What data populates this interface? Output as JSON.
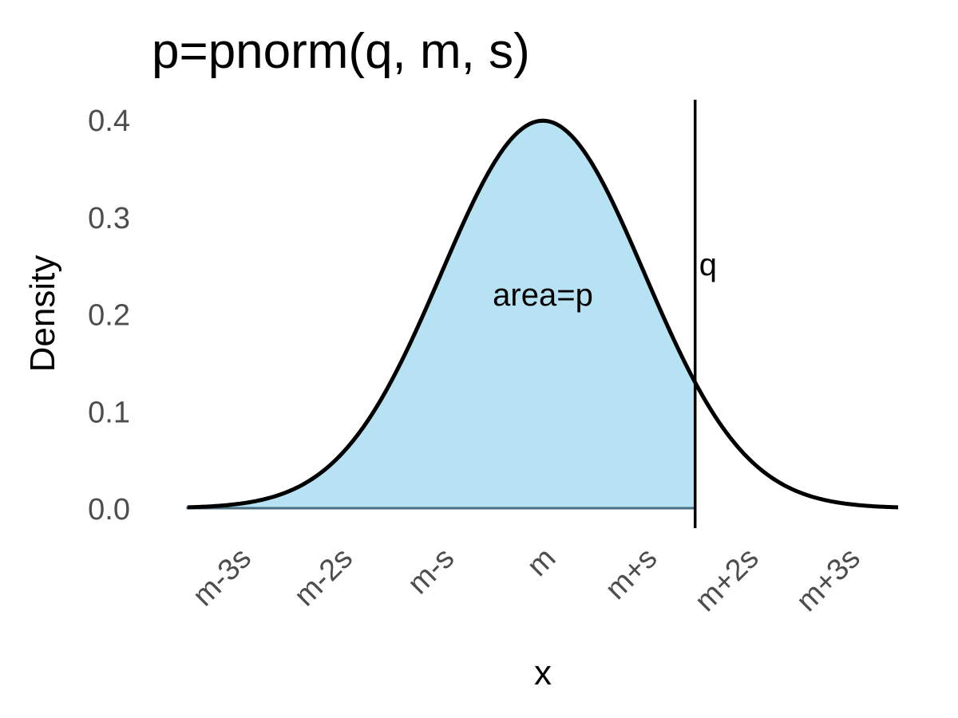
{
  "chart_data": {
    "type": "area",
    "title": "p=pnorm(q, m, s)",
    "xlabel": "x",
    "ylabel": "Density",
    "x_ticks": [
      {
        "value": -3,
        "label": "m-3s"
      },
      {
        "value": -2,
        "label": "m-2s"
      },
      {
        "value": -1,
        "label": "m-s"
      },
      {
        "value": 0,
        "label": "m"
      },
      {
        "value": 1,
        "label": "m+s"
      },
      {
        "value": 2,
        "label": "m+2s"
      },
      {
        "value": 3,
        "label": "m+3s"
      }
    ],
    "y_ticks": [
      {
        "value": 0.0,
        "label": "0.0"
      },
      {
        "value": 0.1,
        "label": "0.1"
      },
      {
        "value": 0.2,
        "label": "0.2"
      },
      {
        "value": 0.3,
        "label": "0.3"
      },
      {
        "value": 0.4,
        "label": "0.4"
      }
    ],
    "xlim": [
      -3.5,
      3.5
    ],
    "ylim": [
      0,
      0.4
    ],
    "grid": false,
    "legend": "none",
    "curve": {
      "distribution": "normal",
      "mean": 0,
      "sd": 1,
      "x_range": [
        -3.5,
        3.5
      ],
      "color": "#000000"
    },
    "shaded_region": {
      "x_range": [
        -3.5,
        1.5
      ],
      "fill": "#87ceeb",
      "opacity": 0.6
    },
    "q_line": {
      "x": 1.5,
      "label": "q",
      "color": "#000000"
    },
    "annotations": [
      {
        "text": "area=p",
        "x": 0,
        "y": 0.22
      }
    ]
  }
}
